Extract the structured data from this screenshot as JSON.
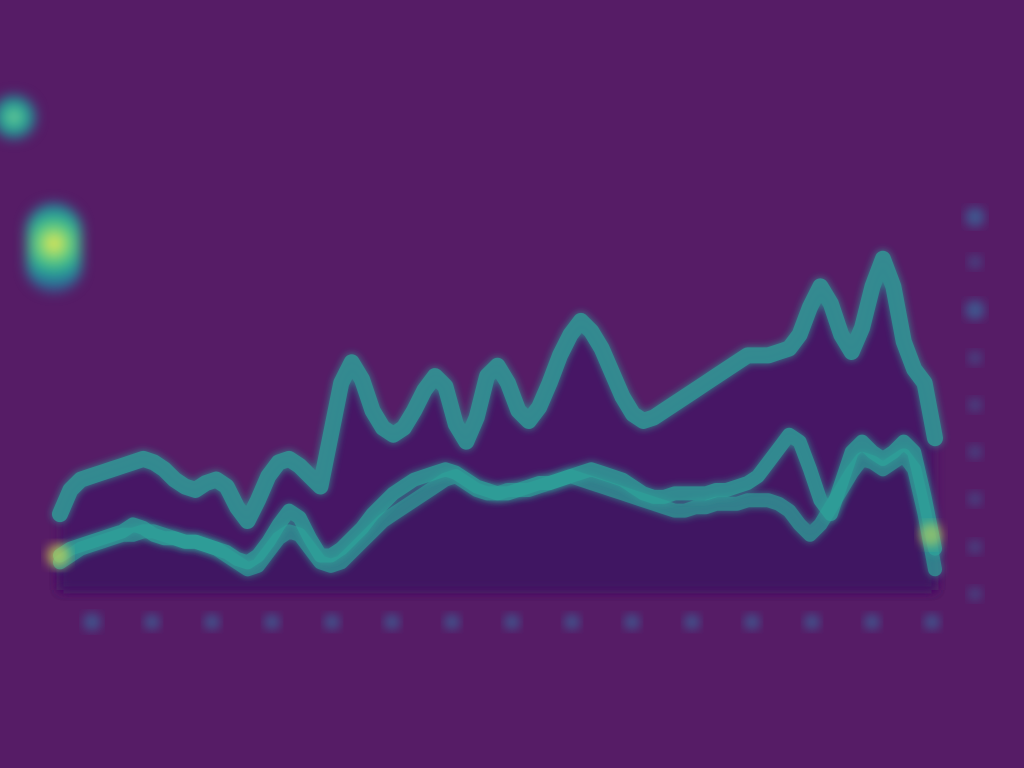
{
  "header": {
    "title_line": "",
    "subtitle_line": ""
  },
  "summary": {
    "line_1": "",
    "line_2": "",
    "footnote": ""
  },
  "chart_data": {
    "type": "area",
    "x": [
      0,
      1,
      2,
      3,
      4,
      5,
      6,
      7,
      8,
      9,
      10,
      11,
      12,
      13,
      14,
      15,
      16,
      17,
      18,
      19,
      20,
      21,
      22,
      23,
      24,
      25,
      26,
      27,
      28,
      29,
      30,
      31,
      32,
      33,
      34,
      35,
      36,
      37,
      38,
      39,
      40,
      41,
      42,
      43,
      44,
      45,
      46,
      47,
      48,
      49,
      50,
      51,
      52,
      53,
      54,
      55,
      56,
      57,
      58,
      59,
      60,
      61,
      62,
      63,
      64,
      65,
      66,
      67,
      68,
      69,
      70,
      71,
      72,
      73,
      74,
      75,
      76,
      77,
      78,
      79,
      80,
      81,
      82,
      83,
      84
    ],
    "series": [
      {
        "name": "",
        "values": [
          0.8,
          1.0,
          1.2,
          1.3,
          1.4,
          1.5,
          1.6,
          1.6,
          1.7,
          1.7,
          1.6,
          1.5,
          1.4,
          1.4,
          1.3,
          1.2,
          1.0,
          0.8,
          0.6,
          0.7,
          1.1,
          1.5,
          1.7,
          1.6,
          1.2,
          0.8,
          0.7,
          0.8,
          1.1,
          1.4,
          1.7,
          2.0,
          2.2,
          2.4,
          2.6,
          2.8,
          3.0,
          3.2,
          3.3,
          3.1,
          2.9,
          2.8,
          2.8,
          2.9,
          2.9,
          2.9,
          3.0,
          3.1,
          3.2,
          3.3,
          3.2,
          3.1,
          3.0,
          2.9,
          2.8,
          2.7,
          2.6,
          2.5,
          2.4,
          2.3,
          2.3,
          2.4,
          2.4,
          2.5,
          2.5,
          2.5,
          2.6,
          2.6,
          2.6,
          2.5,
          2.3,
          1.9,
          1.6,
          1.9,
          2.4,
          2.9,
          3.4,
          3.8,
          3.7,
          3.5,
          3.7,
          3.9,
          3.5,
          2.2,
          0.6
        ]
      },
      {
        "name": "",
        "values": [
          1.0,
          1.2,
          1.3,
          1.4,
          1.5,
          1.6,
          1.7,
          1.9,
          1.8,
          1.6,
          1.5,
          1.5,
          1.4,
          1.4,
          1.3,
          1.2,
          1.1,
          0.9,
          0.8,
          1.0,
          1.4,
          1.9,
          2.3,
          2.1,
          1.5,
          1.0,
          1.0,
          1.2,
          1.5,
          1.8,
          2.2,
          2.5,
          2.8,
          3.0,
          3.2,
          3.3,
          3.4,
          3.5,
          3.4,
          3.2,
          3.0,
          2.9,
          2.8,
          2.8,
          2.9,
          3.0,
          3.1,
          3.1,
          3.2,
          3.3,
          3.4,
          3.5,
          3.4,
          3.3,
          3.2,
          3.0,
          2.8,
          2.7,
          2.7,
          2.8,
          2.8,
          2.8,
          2.8,
          2.9,
          2.9,
          3.0,
          3.1,
          3.3,
          3.7,
          4.1,
          4.5,
          4.3,
          3.5,
          2.6,
          2.2,
          3.1,
          4.0,
          4.3,
          4.0,
          3.8,
          4.0,
          4.3,
          4.0,
          2.7,
          1.2
        ]
      },
      {
        "name": "",
        "values": [
          2.2,
          2.9,
          3.2,
          3.3,
          3.4,
          3.5,
          3.6,
          3.7,
          3.8,
          3.7,
          3.5,
          3.2,
          3.0,
          2.9,
          3.1,
          3.2,
          3.0,
          2.4,
          2.0,
          2.6,
          3.3,
          3.7,
          3.8,
          3.6,
          3.3,
          3.0,
          4.5,
          6.0,
          6.6,
          6.1,
          5.2,
          4.7,
          4.5,
          4.7,
          5.2,
          5.8,
          6.2,
          5.9,
          4.8,
          4.3,
          5.0,
          6.2,
          6.5,
          6.0,
          5.2,
          4.9,
          5.3,
          6.0,
          6.8,
          7.4,
          7.8,
          7.5,
          7.0,
          6.3,
          5.6,
          5.1,
          4.9,
          5.0,
          5.2,
          5.4,
          5.6,
          5.8,
          6.0,
          6.2,
          6.4,
          6.6,
          6.8,
          6.8,
          6.8,
          6.9,
          7.0,
          7.4,
          8.2,
          8.8,
          8.3,
          7.4,
          6.9,
          7.6,
          8.8,
          9.6,
          8.8,
          7.2,
          6.4,
          6.0,
          4.4
        ]
      }
    ],
    "xlim": [
      0,
      84
    ],
    "ylim": [
      0,
      10
    ],
    "grid": false,
    "legend": "none",
    "fill_colors": [
      "#3f1462",
      "#451564",
      "#471465"
    ],
    "line_color": "#2ea39a",
    "highlight_color": "#f0e447"
  }
}
